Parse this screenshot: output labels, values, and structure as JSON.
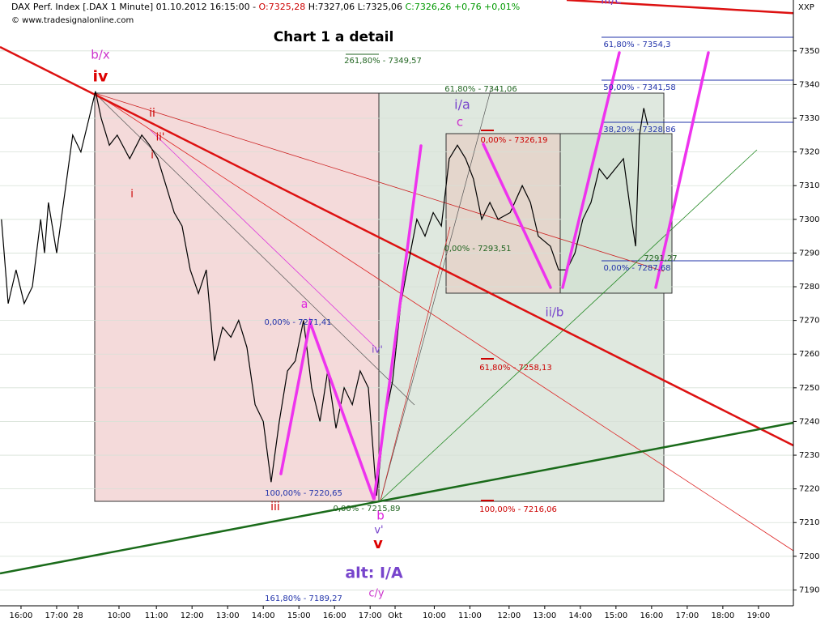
{
  "chart_data": {
    "type": "line",
    "header": [
      {
        "text": "DAX Perf. Index [.DAX  1 Minute] 01.10.2012 16:15:00 - ",
        "color": "#000000"
      },
      {
        "text": "O:7325,28",
        "color": "#cc0000"
      },
      {
        "text": " H:7327,06 L:7325,06 ",
        "color": "#000000"
      },
      {
        "text": "C:7326,26 +0,76 +0,01%",
        "color": "#009900"
      }
    ],
    "copyright": "© www.tradesignalonline.com",
    "title": "Chart 1 a detail",
    "axis_label": "XXP",
    "xlim": [
      -0.59,
      21.68
    ],
    "xticks": [
      {
        "value": 0,
        "label": "16:00"
      },
      {
        "value": 1,
        "label": "17:00"
      },
      {
        "value": 1.6,
        "label": "28"
      },
      {
        "value": 2.75,
        "label": "10:00"
      },
      {
        "value": 3.8,
        "label": "11:00"
      },
      {
        "value": 4.8,
        "label": "12:00"
      },
      {
        "value": 5.8,
        "label": "13:00"
      },
      {
        "value": 6.8,
        "label": "14:00"
      },
      {
        "value": 7.8,
        "label": "15:00"
      },
      {
        "value": 8.8,
        "label": "16:00"
      },
      {
        "value": 9.8,
        "label": "17:00"
      },
      {
        "value": 10.5,
        "label": "Okt"
      },
      {
        "value": 11.6,
        "label": "10:00"
      },
      {
        "value": 12.6,
        "label": "11:00"
      },
      {
        "value": 13.7,
        "label": "12:00"
      },
      {
        "value": 14.7,
        "label": "13:00"
      },
      {
        "value": 15.7,
        "label": "14:00"
      },
      {
        "value": 16.7,
        "label": "15:00"
      },
      {
        "value": 17.7,
        "label": "16:00"
      },
      {
        "value": 18.7,
        "label": "17:00"
      },
      {
        "value": 19.7,
        "label": "18:00"
      },
      {
        "value": 20.7,
        "label": "19:00"
      }
    ],
    "ylim": [
      7185.3,
      7365.1
    ],
    "yticks": [
      7190,
      7200,
      7210,
      7220,
      7230,
      7240,
      7250,
      7260,
      7270,
      7280,
      7290,
      7300,
      7310,
      7320,
      7330,
      7340,
      7350
    ],
    "grid": true,
    "series": [
      {
        "color": "#000000",
        "x": [
          -0.55,
          -0.36,
          -0.14,
          0.09,
          0.32,
          0.55,
          0.66,
          0.77,
          1.0,
          1.45,
          1.68,
          1.91,
          2.09,
          2.25,
          2.48,
          2.7,
          3.05,
          3.39,
          3.61,
          3.84,
          4.07,
          4.3,
          4.52,
          4.75,
          4.98,
          5.2,
          5.43,
          5.66,
          5.89,
          6.11,
          6.34,
          6.57,
          6.8,
          7.02,
          7.25,
          7.48,
          7.7,
          7.93,
          8.16,
          8.39,
          8.61,
          8.84,
          9.07,
          9.3,
          9.52,
          9.75,
          9.98,
          10.2,
          10.43,
          10.66,
          10.89,
          11.11,
          11.34,
          11.57,
          11.8,
          12.02,
          12.25,
          12.48,
          12.7,
          12.93,
          13.16,
          13.39,
          13.73,
          14.07,
          14.3,
          14.52,
          14.86,
          15.09,
          15.32,
          15.55,
          15.77,
          16.0,
          16.23,
          16.45,
          16.68,
          16.91,
          17.14,
          17.25,
          17.36,
          17.48,
          17.59
        ],
        "values": [
          7300,
          7275,
          7285,
          7275,
          7280,
          7300,
          7290,
          7305,
          7290,
          7325,
          7320,
          7330,
          7338,
          7330,
          7322,
          7325,
          7318,
          7325,
          7322,
          7318,
          7310,
          7302,
          7298,
          7285,
          7278,
          7285,
          7258,
          7268,
          7265,
          7270,
          7262,
          7245,
          7240,
          7222,
          7240,
          7255,
          7258,
          7270,
          7250,
          7240,
          7255,
          7238,
          7250,
          7245,
          7255,
          7250,
          7218,
          7240,
          7252,
          7275,
          7288,
          7300,
          7295,
          7302,
          7298,
          7318,
          7322,
          7318,
          7312,
          7300,
          7305,
          7300,
          7302,
          7310,
          7305,
          7295,
          7292,
          7285,
          7285,
          7290,
          7300,
          7305,
          7315,
          7312,
          7315,
          7318,
          7300,
          7292,
          7325,
          7333,
          7328
        ]
      }
    ],
    "annotations": [
      {
        "text": "b/x",
        "color": "#cc33cc"
      },
      {
        "text": "iv",
        "color": "#dd0000"
      },
      {
        "text": "ii",
        "color": "#cc0000"
      },
      {
        "text": "ii'",
        "color": "#cc0000"
      },
      {
        "text": "i",
        "color": "#cc0000"
      },
      {
        "text": "i",
        "color": "#cc0000"
      },
      {
        "text": "iii",
        "color": "#cc0000"
      },
      {
        "text": "a",
        "color": "#dd22dd"
      },
      {
        "text": "iv'",
        "color": "#7744cc"
      },
      {
        "text": "b",
        "color": "#dd22dd"
      },
      {
        "text": "v'",
        "color": "#7744cc"
      },
      {
        "text": "v",
        "color": "#dd0000"
      },
      {
        "text": "alt: I/A",
        "color": "#7744cc"
      },
      {
        "text": "c/y",
        "color": "#cc33cc"
      },
      {
        "text": "i/a",
        "color": "#7744cc"
      },
      {
        "text": "c",
        "color": "#cc33cc"
      },
      {
        "text": "ii/b",
        "color": "#7744cc"
      },
      {
        "text": "iii/c",
        "color": "#7744cc"
      },
      {
        "text": "261,80% - 7349,57",
        "color": "#226622"
      },
      {
        "text": "61,80% - 7341,06",
        "color": "#226622"
      },
      {
        "text": "0,00% - 7326,19",
        "color": "#cc0000"
      },
      {
        "text": "0,00% - 7293,51",
        "color": "#226622"
      },
      {
        "text": "61,80% - 7258,13",
        "color": "#cc0000"
      },
      {
        "text": "100,00% - 7216,06",
        "color": "#cc0000"
      },
      {
        "text": "0,00% - 7271,41",
        "color": "#2233aa"
      },
      {
        "text": "100,00% - 7220,65",
        "color": "#2233aa"
      },
      {
        "text": "0,00% - 7215,89",
        "color": "#226622"
      },
      {
        "text": "161,80% - 7189,27",
        "color": "#2233aa"
      },
      {
        "text": "61,80% - 7354,3",
        "color": "#2233aa"
      },
      {
        "text": "50,00% - 7341,58",
        "color": "#2233aa"
      },
      {
        "text": "38,20% - 7328,86",
        "color": "#2233aa"
      },
      {
        "text": "0,00% - 7287,68",
        "color": "#2233aa"
      },
      {
        "text": "7291,27",
        "color": "#226622"
      }
    ]
  }
}
